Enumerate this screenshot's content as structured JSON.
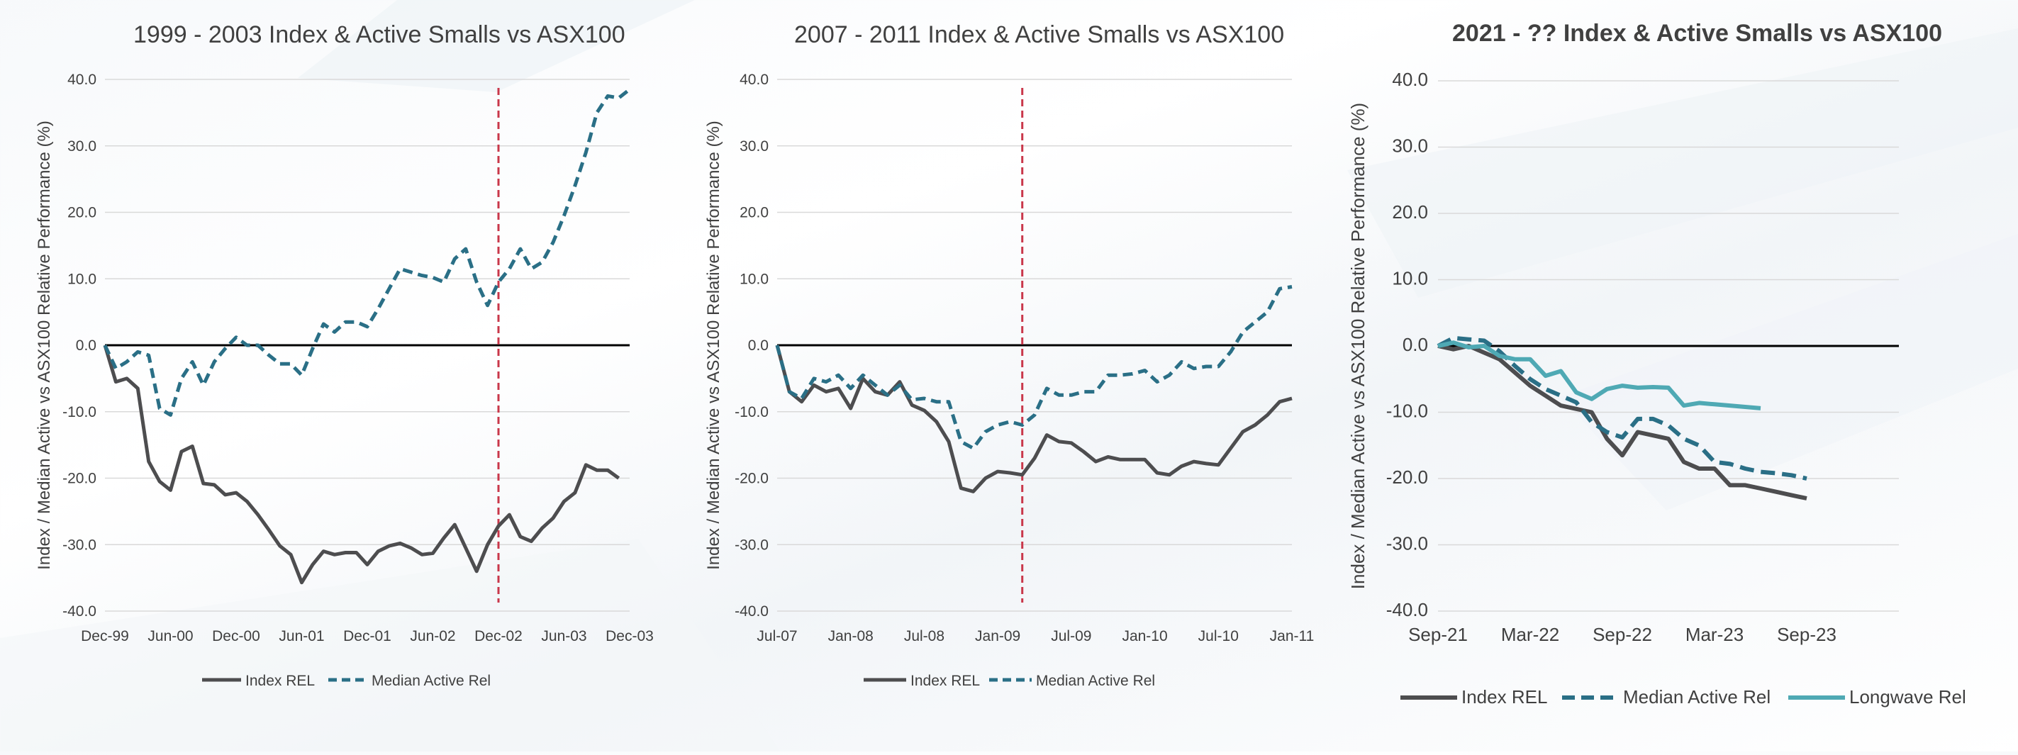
{
  "chart_data": [
    {
      "type": "line",
      "title": "1999 - 2003 Index & Active Smalls vs ASX100",
      "ylabel": "Index / Median Active vs ASX100 Relative Performance (%)",
      "xlabel": "",
      "x_tick_labels": [
        "Dec-99",
        "Jun-00",
        "Dec-00",
        "Jun-01",
        "Dec-01",
        "Jun-02",
        "Dec-02",
        "Jun-03",
        "Dec-03"
      ],
      "y_tick_labels": [
        "40.0",
        "30.0",
        "20.0",
        "10.0",
        "0.0",
        "-10.0",
        "-20.0",
        "-30.0",
        "-40.0"
      ],
      "ylim": [
        -40,
        40
      ],
      "grid": true,
      "legend_position": "bottom",
      "vline_month": 36,
      "series": [
        {
          "name": "Index REL",
          "style": "solid",
          "color": "#4d4d4f",
          "values": [
            0,
            -5.5,
            -5,
            -6.5,
            -17.5,
            -20.5,
            -21.8,
            -16,
            -15.2,
            -20.8,
            -21,
            -22.5,
            -22.2,
            -23.5,
            -25.5,
            -27.8,
            -30.2,
            -31.5,
            -35.7,
            -33,
            -31,
            -31.5,
            -31.2,
            -31.2,
            -33,
            -31,
            -30.2,
            -29.8,
            -30.5,
            -31.5,
            -31.3,
            -29,
            -27,
            -30.5,
            -34,
            -30,
            -27.2,
            -25.5,
            -28.8,
            -29.5,
            -27.5,
            -26,
            -23.5,
            -22.2,
            -18,
            -18.8,
            -18.8,
            -20
          ]
        },
        {
          "name": "Median Active Rel",
          "style": "dashed",
          "color": "#2a6f86",
          "values": [
            0,
            -3.5,
            -2.5,
            -1,
            -1.5,
            -9.5,
            -10.5,
            -5,
            -2.5,
            -6,
            -2.5,
            -0.5,
            1.2,
            0,
            0,
            -1.5,
            -2.8,
            -2.8,
            -4.5,
            -0.5,
            3.2,
            2,
            3.5,
            3.5,
            2.8,
            5.5,
            8.5,
            11.5,
            11,
            10.5,
            10.2,
            9.5,
            13,
            14.5,
            9.5,
            6,
            9.5,
            11.5,
            14.5,
            11.5,
            12.5,
            15.5,
            19.5,
            24,
            29,
            35,
            37.5,
            37.2,
            38.5
          ]
        }
      ]
    },
    {
      "type": "line",
      "title": "2007 - 2011 Index & Active Smalls vs ASX100",
      "ylabel": "Index / Median Active vs ASX100 Relative Performance (%)",
      "xlabel": "",
      "x_tick_labels": [
        "Jul-07",
        "Jan-08",
        "Jul-08",
        "Jan-09",
        "Jul-09",
        "Jan-10",
        "Jul-10",
        "Jan-11"
      ],
      "y_tick_labels": [
        "40.0",
        "30.0",
        "20.0",
        "10.0",
        "0.0",
        "-10.0",
        "-20.0",
        "-30.0",
        "-40.0"
      ],
      "ylim": [
        -40,
        40
      ],
      "grid": true,
      "legend_position": "bottom",
      "vline_month": 20,
      "series": [
        {
          "name": "Index REL",
          "style": "solid",
          "color": "#4d4d4f",
          "values": [
            0,
            -7,
            -8.5,
            -6,
            -7,
            -6.5,
            -9.5,
            -5,
            -7,
            -7.5,
            -5.5,
            -9,
            -9.8,
            -11.5,
            -14.5,
            -21.5,
            -22,
            -20,
            -19,
            -19.2,
            -19.5,
            -17,
            -13.5,
            -14.5,
            -14.7,
            -16,
            -17.5,
            -16.8,
            -17.2,
            -17.2,
            -17.2,
            -19.2,
            -19.5,
            -18.2,
            -17.5,
            -17.8,
            -18,
            -15.5,
            -13,
            -12,
            -10.5,
            -8.5,
            -8
          ]
        },
        {
          "name": "Median Active Rel",
          "style": "dashed",
          "color": "#2a6f86",
          "values": [
            0,
            -7,
            -8,
            -5,
            -5.5,
            -4.5,
            -6.5,
            -4.5,
            -6,
            -7.5,
            -6,
            -8.2,
            -8,
            -8.5,
            -8.5,
            -14.5,
            -15.5,
            -13,
            -12,
            -11.5,
            -12,
            -10.5,
            -6.5,
            -7.5,
            -7.5,
            -7,
            -7,
            -4.5,
            -4.5,
            -4.3,
            -3.8,
            -5.5,
            -4.5,
            -2.5,
            -3.5,
            -3.2,
            -3.2,
            -1,
            2,
            3.5,
            5,
            8.5,
            8.8
          ]
        }
      ]
    },
    {
      "type": "line",
      "title": "2021 - ?? Index & Active Smalls vs ASX100",
      "ylabel": "Index / Median Active vs ASX100 Relative Performance (%)",
      "xlabel": "",
      "x_tick_labels": [
        "Sep-21",
        "Mar-22",
        "Sep-22",
        "Mar-23",
        "Sep-23"
      ],
      "y_tick_labels": [
        "40.0",
        "30.0",
        "20.0",
        "10.0",
        "0.0",
        "-10.0",
        "-20.0",
        "-30.0",
        "-40.0"
      ],
      "ylim": [
        -40,
        40
      ],
      "grid": true,
      "legend_position": "bottom",
      "series": [
        {
          "name": "Index REL",
          "style": "solid",
          "color": "#4d4d4f",
          "values": [
            0,
            -0.5,
            0,
            -1,
            -2,
            -4,
            -6,
            -7.5,
            -9,
            -9.5,
            -10,
            -14,
            -16.5,
            -13,
            -13.5,
            -14,
            -17.5,
            -18.5,
            -18.5,
            -21,
            -21,
            -21.5,
            -22,
            -22.5,
            -23
          ]
        },
        {
          "name": "Median Active Rel",
          "style": "dashed",
          "color": "#2a6f86",
          "values": [
            0,
            1.2,
            1,
            0.8,
            -0.8,
            -3,
            -5,
            -6.5,
            -7.5,
            -8.5,
            -11.5,
            -13,
            -13.8,
            -11,
            -11,
            -12,
            -14,
            -15,
            -17.5,
            -17.8,
            -18.5,
            -19,
            -19.2,
            -19.5,
            -20
          ]
        },
        {
          "name": "Longwave Rel",
          "style": "solid",
          "color": "#4fa9b4",
          "values": [
            0,
            0.5,
            -0.2,
            0,
            -1.5,
            -2,
            -2,
            -4.5,
            -3.8,
            -7,
            -8,
            -6.5,
            -6,
            -6.3,
            -6.2,
            -6.3,
            -9,
            -8.6,
            -8.8,
            -9,
            -9.2,
            -9.4
          ]
        }
      ]
    }
  ]
}
